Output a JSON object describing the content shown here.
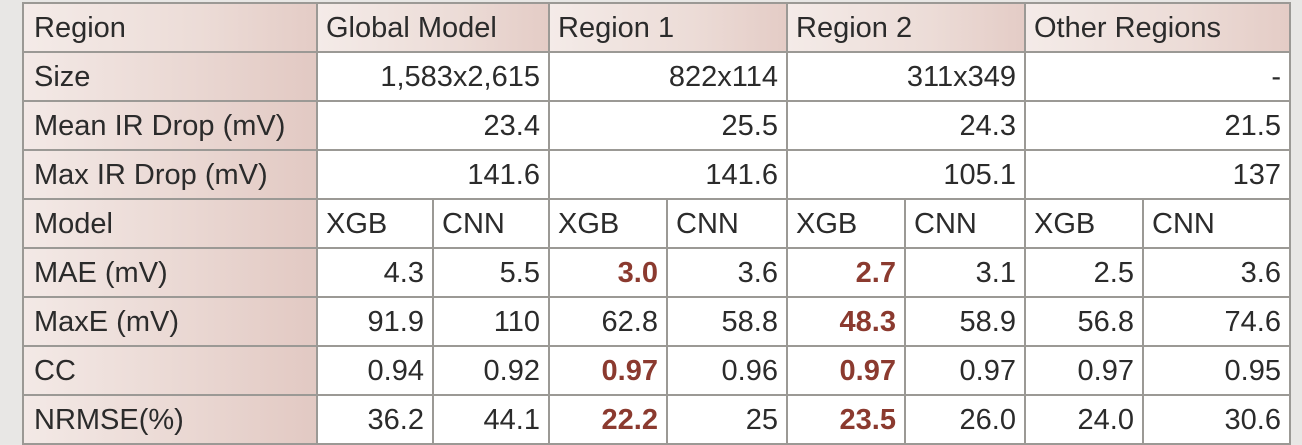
{
  "table": {
    "header": {
      "label": "Region",
      "global": "Global Model",
      "region1": "Region 1",
      "region2": "Region 2",
      "other": "Other Regions"
    },
    "size": {
      "label": "Size",
      "global": "1,583x2,615",
      "region1": "822x114",
      "region2": "311x349",
      "other": "-"
    },
    "mean_ir": {
      "label": "Mean IR Drop (mV)",
      "global": "23.4",
      "region1": "25.5",
      "region2": "24.3",
      "other": "21.5"
    },
    "max_ir": {
      "label": "Max IR Drop (mV)",
      "global": "141.6",
      "region1": "141.6",
      "region2": "105.1",
      "other": "137"
    },
    "model": {
      "label": "Model",
      "cols": [
        "XGB",
        "CNN",
        "XGB",
        "CNN",
        "XGB",
        "CNN",
        "XGB",
        "CNN"
      ]
    },
    "metrics": [
      {
        "label": "MAE (mV)",
        "values": [
          "4.3",
          "5.5",
          "3.0",
          "3.6",
          "2.7",
          "3.1",
          "2.5",
          "3.6"
        ],
        "highlight": [
          false,
          false,
          true,
          false,
          true,
          false,
          false,
          false
        ]
      },
      {
        "label": "MaxE (mV)",
        "values": [
          "91.9",
          "110",
          "62.8",
          "58.8",
          "48.3",
          "58.9",
          "56.8",
          "74.6"
        ],
        "highlight": [
          false,
          false,
          false,
          false,
          true,
          false,
          false,
          false
        ]
      },
      {
        "label": "CC",
        "values": [
          "0.94",
          "0.92",
          "0.97",
          "0.96",
          "0.97",
          "0.97",
          "0.97",
          "0.95"
        ],
        "highlight": [
          false,
          false,
          true,
          false,
          true,
          false,
          false,
          false
        ]
      },
      {
        "label": "NRMSE(%)",
        "values": [
          "36.2",
          "44.1",
          "22.2",
          "25",
          "23.5",
          "26.0",
          "24.0",
          "30.6"
        ],
        "highlight": [
          false,
          false,
          true,
          false,
          true,
          false,
          false,
          false
        ]
      }
    ],
    "colors": {
      "highlight": "#8b3a2f",
      "header_tint": "#ecdcd7",
      "border": "#9b9995"
    }
  }
}
